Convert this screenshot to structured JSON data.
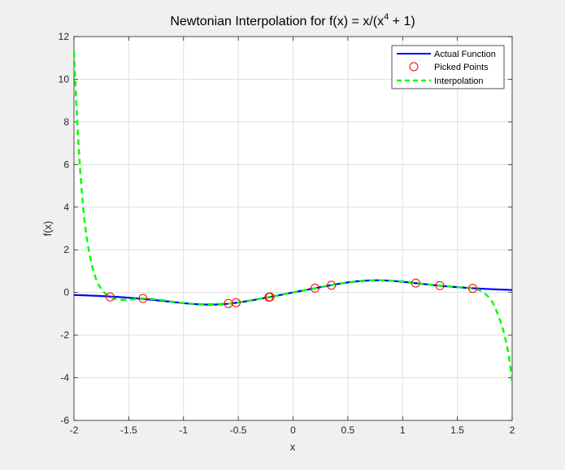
{
  "chart_data": {
    "type": "line",
    "title_main": "Newtonian Interpolation for f(x) = x/(x",
    "title_sup": "4",
    "title_end": " + 1)",
    "xlabel": "x",
    "ylabel": "f(x)",
    "xlim": [
      -2,
      2
    ],
    "ylim": [
      -6,
      12
    ],
    "xticks": [
      -2,
      -1.5,
      -1,
      -0.5,
      0,
      0.5,
      1,
      1.5,
      2
    ],
    "xtick_labels": [
      "-2",
      "-1.5",
      "-1",
      "-0.5",
      "0",
      "0.5",
      "1",
      "1.5",
      "2"
    ],
    "yticks": [
      -6,
      -4,
      -2,
      0,
      2,
      4,
      6,
      8,
      10,
      12
    ],
    "ytick_labels": [
      "-6",
      "-4",
      "-2",
      "0",
      "2",
      "4",
      "6",
      "8",
      "10",
      "12"
    ],
    "grid": true,
    "legend_placement": "top-right",
    "series": [
      {
        "name": "Actual Function",
        "kind": "line",
        "color": "#0000ff",
        "style": "solid",
        "function": "x/(x^4+1)"
      },
      {
        "name": "Picked Points",
        "kind": "marker",
        "color": "#ff0000",
        "marker": "circle",
        "x": [
          -1.67,
          -1.37,
          -0.59,
          -0.52,
          -0.22,
          -0.21,
          0.2,
          0.35,
          1.12,
          1.34,
          1.64
        ],
        "y": [
          -0.21,
          -0.28,
          -0.52,
          -0.48,
          -0.22,
          -0.21,
          0.2,
          0.34,
          0.44,
          0.32,
          0.19
        ]
      },
      {
        "name": "Interpolation",
        "kind": "line",
        "color": "#00ff00",
        "style": "dashed",
        "x": [
          -2.0,
          -1.97,
          -1.94,
          -1.9,
          -1.85,
          -1.8,
          -1.75,
          -1.7,
          -1.67,
          -1.6,
          -1.5,
          -1.37,
          -1.2,
          -1.0,
          -0.8,
          -0.59,
          -0.52,
          -0.4,
          -0.22,
          -0.21,
          0.0,
          0.2,
          0.35,
          0.5,
          0.75,
          1.0,
          1.12,
          1.34,
          1.5,
          1.64,
          1.72,
          1.8,
          1.86,
          1.92,
          1.97,
          2.0
        ],
        "y": [
          11.3,
          8.0,
          5.5,
          3.2,
          1.6,
          0.65,
          0.15,
          -0.12,
          -0.21,
          -0.33,
          -0.34,
          -0.28,
          -0.36,
          -0.5,
          -0.55,
          -0.52,
          -0.48,
          -0.38,
          -0.22,
          -0.21,
          0.0,
          0.2,
          0.34,
          0.47,
          0.57,
          0.52,
          0.44,
          0.32,
          0.25,
          0.19,
          0.05,
          -0.3,
          -0.9,
          -1.8,
          -3.0,
          -4.2
        ]
      }
    ]
  }
}
